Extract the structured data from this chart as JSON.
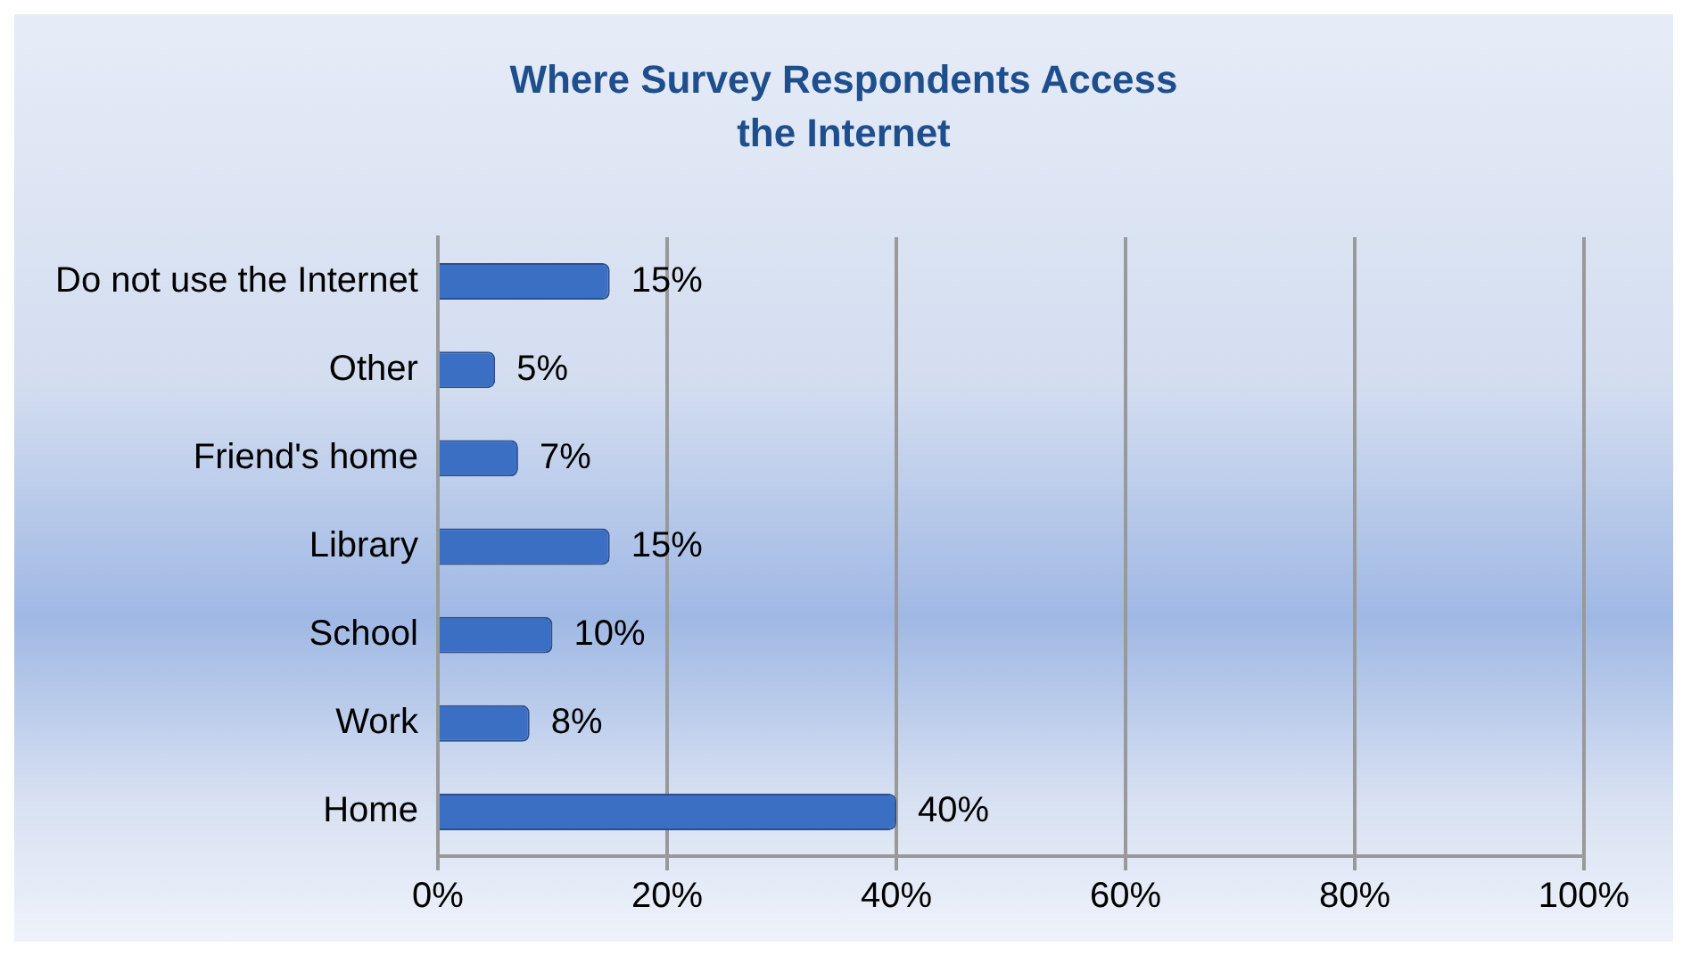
{
  "chart_data": {
    "type": "bar",
    "orientation": "horizontal",
    "title": "Where Survey Respondents Access the Internet",
    "categories": [
      "Do not use the Internet",
      "Other",
      "Friend's home",
      "Library",
      "School",
      "Work",
      "Home"
    ],
    "values": [
      15,
      5,
      7,
      15,
      10,
      8,
      40
    ],
    "value_labels": [
      "15%",
      "5%",
      "7%",
      "15%",
      "10%",
      "8%",
      "40%"
    ],
    "color": "#3a6fc4",
    "xlim": [
      0,
      100
    ],
    "xticks": [
      {
        "value": 0,
        "label": "0%"
      },
      {
        "value": 20,
        "label": "20%"
      },
      {
        "value": 40,
        "label": "40%"
      },
      {
        "value": 60,
        "label": "60%"
      },
      {
        "value": 80,
        "label": "80%"
      },
      {
        "value": 100,
        "label": "100%"
      }
    ],
    "grid": "x",
    "legend": false
  }
}
